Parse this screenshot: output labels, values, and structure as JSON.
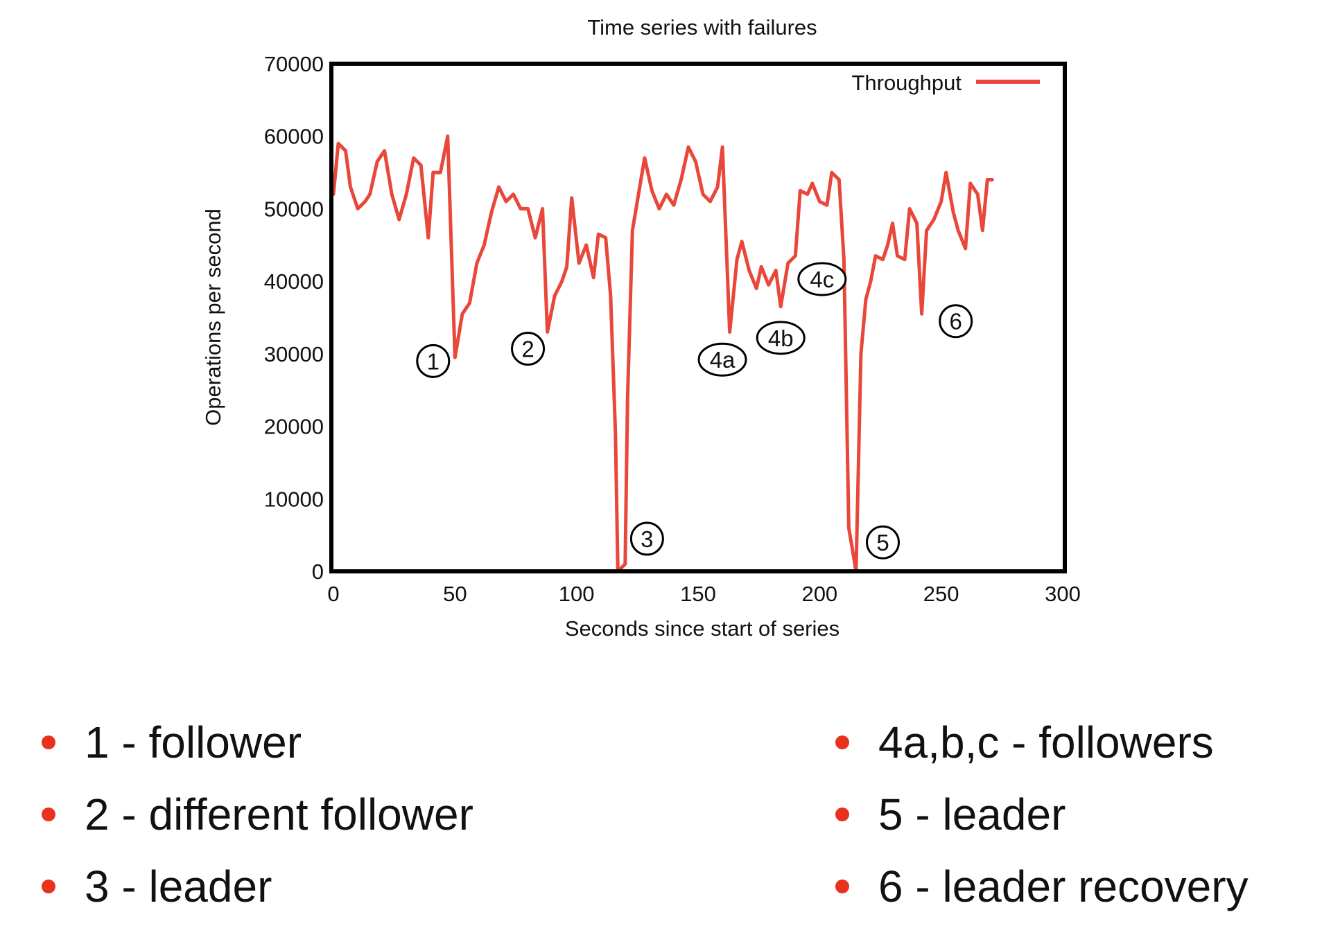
{
  "chart_data": {
    "type": "line",
    "title": "Time series with failures",
    "xlabel": "Seconds since start of series",
    "ylabel": "Operations per second",
    "xlim": [
      0,
      300
    ],
    "ylim": [
      0,
      70000
    ],
    "xticks": [
      0,
      50,
      100,
      150,
      200,
      250,
      300
    ],
    "yticks": [
      0,
      10000,
      20000,
      30000,
      40000,
      50000,
      60000,
      70000
    ],
    "grid": false,
    "legend_position": "top-right",
    "series": [
      {
        "name": "Throughput",
        "color": "#e8473a",
        "points": [
          [
            0,
            52000
          ],
          [
            2,
            59000
          ],
          [
            5,
            58000
          ],
          [
            7,
            53000
          ],
          [
            10,
            50000
          ],
          [
            13,
            51000
          ],
          [
            15,
            52000
          ],
          [
            18,
            56500
          ],
          [
            21,
            58000
          ],
          [
            24,
            52000
          ],
          [
            27,
            48500
          ],
          [
            30,
            52000
          ],
          [
            33,
            57000
          ],
          [
            36,
            56000
          ],
          [
            39,
            46000
          ],
          [
            41,
            55000
          ],
          [
            44,
            55000
          ],
          [
            47,
            60000
          ],
          [
            50,
            29500
          ],
          [
            53,
            35500
          ],
          [
            56,
            37000
          ],
          [
            59,
            42500
          ],
          [
            62,
            45000
          ],
          [
            65,
            49500
          ],
          [
            68,
            53000
          ],
          [
            71,
            51000
          ],
          [
            74,
            52000
          ],
          [
            77,
            50000
          ],
          [
            80,
            50000
          ],
          [
            83,
            46000
          ],
          [
            86,
            50000
          ],
          [
            88,
            33000
          ],
          [
            91,
            38000
          ],
          [
            94,
            40000
          ],
          [
            96,
            42000
          ],
          [
            98,
            51500
          ],
          [
            101,
            42500
          ],
          [
            104,
            45000
          ],
          [
            107,
            40500
          ],
          [
            109,
            46500
          ],
          [
            112,
            46000
          ],
          [
            114,
            38000
          ],
          [
            116,
            19000
          ],
          [
            117,
            0
          ],
          [
            120,
            1000
          ],
          [
            121,
            24000
          ],
          [
            123,
            47000
          ],
          [
            126,
            53000
          ],
          [
            128,
            57000
          ],
          [
            131,
            52500
          ],
          [
            134,
            50000
          ],
          [
            137,
            52000
          ],
          [
            140,
            50500
          ],
          [
            143,
            54000
          ],
          [
            146,
            58500
          ],
          [
            149,
            56500
          ],
          [
            152,
            52000
          ],
          [
            155,
            51000
          ],
          [
            158,
            53000
          ],
          [
            160,
            58500
          ],
          [
            163,
            33000
          ],
          [
            166,
            43000
          ],
          [
            168,
            45500
          ],
          [
            171,
            41500
          ],
          [
            174,
            39000
          ],
          [
            176,
            42000
          ],
          [
            179,
            39500
          ],
          [
            182,
            41500
          ],
          [
            184,
            36500
          ],
          [
            187,
            42500
          ],
          [
            190,
            43500
          ],
          [
            192,
            52500
          ],
          [
            195,
            52000
          ],
          [
            197,
            53500
          ],
          [
            200,
            51000
          ],
          [
            203,
            50500
          ],
          [
            205,
            55000
          ],
          [
            208,
            54000
          ],
          [
            210,
            43000
          ],
          [
            212,
            6000
          ],
          [
            215,
            0
          ],
          [
            217,
            30000
          ],
          [
            219,
            37500
          ],
          [
            221,
            40000
          ],
          [
            223,
            43500
          ],
          [
            226,
            43000
          ],
          [
            228,
            45000
          ],
          [
            230,
            48000
          ],
          [
            232,
            43500
          ],
          [
            235,
            43000
          ],
          [
            237,
            50000
          ],
          [
            240,
            48000
          ],
          [
            242,
            35500
          ],
          [
            244,
            47000
          ],
          [
            247,
            48500
          ],
          [
            250,
            51000
          ],
          [
            252,
            55000
          ],
          [
            255,
            49500
          ],
          [
            257,
            47000
          ],
          [
            260,
            44500
          ],
          [
            262,
            53500
          ],
          [
            265,
            52000
          ],
          [
            267,
            47000
          ],
          [
            269,
            54000
          ],
          [
            271,
            54000
          ]
        ]
      }
    ],
    "annotations": [
      {
        "label": "1",
        "x": 41,
        "y": 29000
      },
      {
        "label": "2",
        "x": 80,
        "y": 30700
      },
      {
        "label": "3",
        "x": 129,
        "y": 4500
      },
      {
        "label": "4a",
        "x": 160,
        "y": 29200
      },
      {
        "label": "4b",
        "x": 184,
        "y": 32200
      },
      {
        "label": "4c",
        "x": 201,
        "y": 40300
      },
      {
        "label": "5",
        "x": 226,
        "y": 4000
      },
      {
        "label": "6",
        "x": 256,
        "y": 34500
      }
    ]
  },
  "bullets": {
    "left": [
      "1 - follower",
      "2 - different follower",
      "3 - leader"
    ],
    "right": [
      "4a,b,c - followers",
      "5 - leader",
      "6 - leader recovery"
    ],
    "bullet_color": "#e8321e"
  }
}
